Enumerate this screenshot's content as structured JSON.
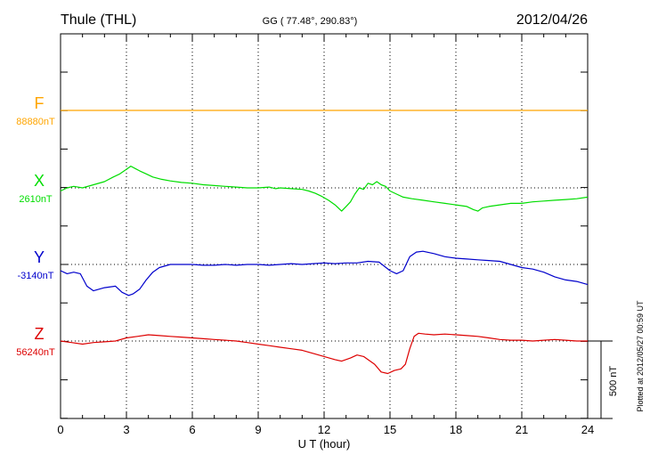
{
  "header": {
    "station": "Thule (THL)",
    "coords": "GG ( 77.48°, 290.83°)",
    "date": "2012/04/26"
  },
  "footer": {
    "plotted_note": "Plotted at 2012/05/27 00:59 UT",
    "scale_label": "500 nT"
  },
  "chart_data": {
    "type": "line",
    "xlabel": "U T (hour)",
    "xlim": [
      0,
      24
    ],
    "x_ticks": [
      0,
      3,
      6,
      9,
      12,
      15,
      18,
      21,
      24
    ],
    "x_tick_labels": [
      "0",
      "3",
      "6",
      "9",
      "12",
      "15",
      "18",
      "21",
      "24"
    ],
    "scale_nT": 500,
    "series": [
      {
        "name": "F",
        "base_label": "88880nT",
        "color": "#FFA500",
        "x": [
          0,
          24
        ],
        "values": [
          0,
          0
        ]
      },
      {
        "name": "X",
        "base_label": "2610nT",
        "color": "#00DD00",
        "x": [
          0,
          0.3,
          0.6,
          1.0,
          1.5,
          2.0,
          2.4,
          2.7,
          2.9,
          3.1,
          3.2,
          3.4,
          3.6,
          3.9,
          4.2,
          4.6,
          5.0,
          5.5,
          6.0,
          6.5,
          7.0,
          7.5,
          8.0,
          8.5,
          9.0,
          9.5,
          9.8,
          10.0,
          10.5,
          11.0,
          11.3,
          11.6,
          11.9,
          12.2,
          12.5,
          12.8,
          13.0,
          13.2,
          13.4,
          13.6,
          13.8,
          14.0,
          14.2,
          14.4,
          14.6,
          14.8,
          15.0,
          15.3,
          15.6,
          16.0,
          16.5,
          17.0,
          17.5,
          18.0,
          18.5,
          18.8,
          19.0,
          19.2,
          19.5,
          20.0,
          20.5,
          21.0,
          21.5,
          22.0,
          22.5,
          23.0,
          23.5,
          24.0
        ],
        "values": [
          -20,
          0,
          10,
          0,
          20,
          40,
          70,
          90,
          110,
          130,
          140,
          125,
          110,
          90,
          70,
          55,
          45,
          35,
          30,
          20,
          15,
          10,
          5,
          0,
          0,
          5,
          -5,
          0,
          -5,
          -10,
          -20,
          -35,
          -55,
          -80,
          -110,
          -150,
          -120,
          -90,
          -40,
          0,
          -10,
          30,
          20,
          40,
          20,
          10,
          -20,
          -40,
          -60,
          -70,
          -80,
          -90,
          -100,
          -110,
          -120,
          -140,
          -150,
          -130,
          -120,
          -110,
          -100,
          -100,
          -90,
          -85,
          -80,
          -75,
          -70,
          -60
        ]
      },
      {
        "name": "Y",
        "base_label": "-3140nT",
        "color": "#0000CC",
        "x": [
          0,
          0.3,
          0.6,
          0.9,
          1.2,
          1.5,
          2.0,
          2.5,
          2.8,
          3.1,
          3.3,
          3.6,
          3.9,
          4.2,
          4.5,
          5.0,
          5.5,
          6.0,
          6.5,
          7.0,
          7.5,
          8.0,
          8.5,
          9.0,
          9.5,
          10.0,
          10.5,
          11.0,
          11.5,
          12.0,
          12.5,
          13.0,
          13.5,
          14.0,
          14.5,
          15.0,
          15.3,
          15.6,
          15.9,
          16.2,
          16.5,
          17.0,
          17.5,
          18.0,
          18.5,
          19.0,
          19.5,
          20.0,
          20.5,
          21.0,
          21.5,
          22.0,
          22.5,
          23.0,
          23.5,
          24.0
        ],
        "values": [
          -40,
          -60,
          -50,
          -60,
          -140,
          -170,
          -150,
          -140,
          -180,
          -200,
          -190,
          -160,
          -100,
          -50,
          -20,
          0,
          0,
          0,
          -5,
          -5,
          0,
          -5,
          0,
          0,
          -5,
          0,
          5,
          0,
          5,
          10,
          5,
          10,
          10,
          20,
          15,
          -40,
          -60,
          -40,
          50,
          80,
          85,
          70,
          50,
          40,
          35,
          30,
          25,
          20,
          0,
          -20,
          -30,
          -50,
          -80,
          -100,
          -110,
          -130
        ]
      },
      {
        "name": "Z",
        "base_label": "56240nT",
        "color": "#DD0000",
        "x": [
          0,
          0.5,
          1.0,
          1.5,
          2.0,
          2.5,
          3.0,
          3.5,
          4.0,
          4.5,
          5.0,
          5.5,
          6.0,
          6.5,
          7.0,
          7.5,
          8.0,
          8.5,
          9.0,
          9.5,
          10.0,
          10.5,
          11.0,
          11.5,
          12.0,
          12.5,
          12.8,
          13.2,
          13.5,
          13.8,
          14.0,
          14.3,
          14.6,
          14.9,
          15.2,
          15.5,
          15.7,
          15.9,
          16.1,
          16.3,
          16.6,
          17.0,
          17.5,
          18.0,
          18.5,
          19.0,
          19.5,
          20.0,
          20.5,
          21.0,
          21.5,
          22.0,
          22.5,
          23.0,
          23.5,
          24.0
        ],
        "values": [
          0,
          -10,
          -20,
          -10,
          -5,
          0,
          20,
          30,
          40,
          35,
          30,
          25,
          20,
          15,
          10,
          5,
          0,
          -10,
          -20,
          -30,
          -40,
          -50,
          -60,
          -80,
          -100,
          -120,
          -130,
          -110,
          -90,
          -100,
          -120,
          -150,
          -200,
          -210,
          -190,
          -180,
          -150,
          -50,
          30,
          50,
          45,
          40,
          45,
          40,
          35,
          30,
          20,
          10,
          5,
          5,
          0,
          5,
          10,
          5,
          0,
          0
        ]
      }
    ]
  }
}
